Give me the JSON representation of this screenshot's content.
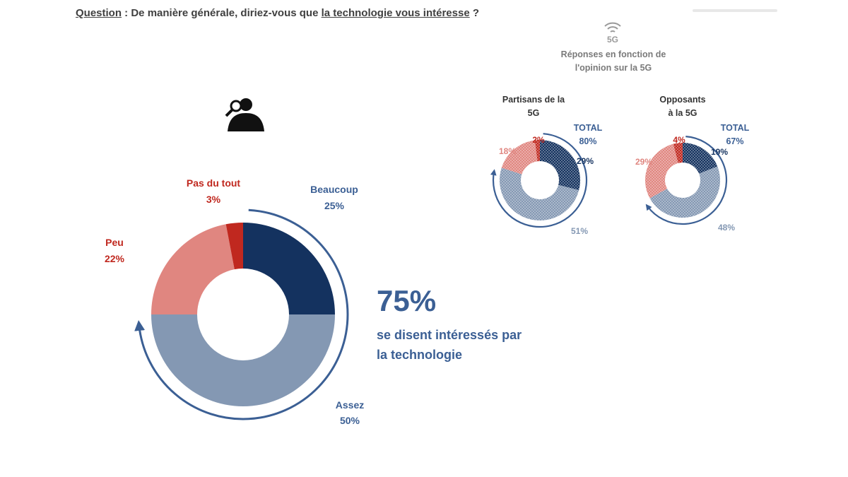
{
  "question": {
    "label": "Question",
    "text_before": " : De manière générale, diriez-vous que ",
    "underlined": "la technologie vous intéresse",
    "text_after": " ?"
  },
  "icons": {
    "wifi_5g": "wifi-5g-icon",
    "person": "person-magnifier-icon"
  },
  "wifi_label": "5G",
  "side_heading": [
    "Réponses en fonction de",
    "l'opinion sur la 5G"
  ],
  "highlight": {
    "value": "75%",
    "caption": [
      "se disent intéressés par",
      "la technologie"
    ]
  },
  "colors": {
    "beaucoup": "#14325f",
    "assez": "#8498b3",
    "peu": "#e08680",
    "pas_du_tout": "#c0281f",
    "blue_text": "#3b5f94",
    "red_text": "#c0281f",
    "arrow": "#3b5f94"
  },
  "chart_data": [
    {
      "type": "pie",
      "title": "",
      "categories": [
        "Beaucoup",
        "Assez",
        "Peu",
        "Pas du tout"
      ],
      "values": [
        25,
        50,
        22,
        3
      ],
      "labels": [
        "25%",
        "50%",
        "22%",
        "3%"
      ],
      "annotation": "75%"
    },
    {
      "type": "pie",
      "title": [
        "Partisans de la",
        "5G"
      ],
      "categories": [
        "Beaucoup",
        "Assez",
        "Peu",
        "Pas du tout"
      ],
      "values": [
        29,
        51,
        18,
        2
      ],
      "labels": [
        "29%",
        "51%",
        "18%",
        "2%"
      ],
      "total_label": [
        "TOTAL",
        "80%"
      ]
    },
    {
      "type": "pie",
      "title": [
        "Opposants",
        "à la 5G"
      ],
      "categories": [
        "Beaucoup",
        "Assez",
        "Peu",
        "Pas du tout"
      ],
      "values": [
        19,
        48,
        29,
        4
      ],
      "labels": [
        "19%",
        "48%",
        "29%",
        "4%"
      ],
      "total_label": [
        "TOTAL",
        "67%"
      ]
    }
  ]
}
